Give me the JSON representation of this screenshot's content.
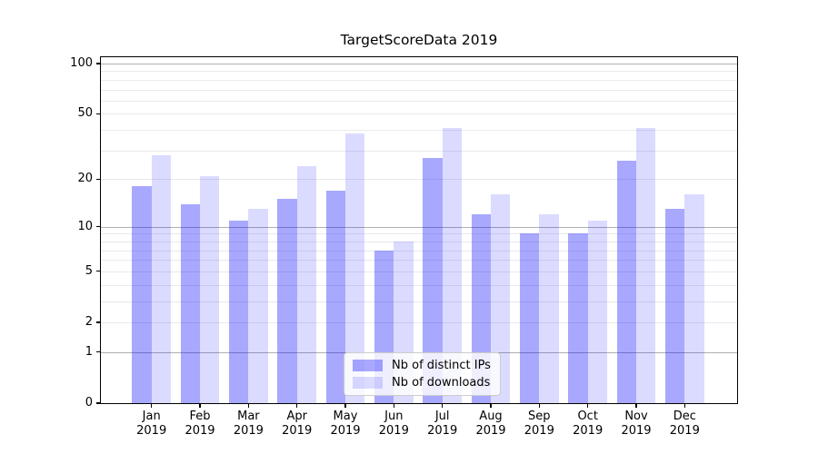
{
  "title": "TargetScoreData 2019",
  "legend": {
    "items": [
      {
        "label": "Nb of distinct IPs",
        "series_key": "ips"
      },
      {
        "label": "Nb of downloads",
        "series_key": "downloads"
      }
    ],
    "position": "lower center"
  },
  "axes": {
    "y_tick_labels": [
      "100",
      "50",
      "20",
      "10",
      "5",
      "2",
      "1",
      "0"
    ],
    "y_tick_values": [
      100,
      50,
      20,
      10,
      5,
      2,
      1,
      0
    ],
    "x_tick_months": [
      "Jan",
      "Feb",
      "Mar",
      "Apr",
      "May",
      "Jun",
      "Jul",
      "Aug",
      "Sep",
      "Oct",
      "Nov",
      "Dec"
    ],
    "x_tick_year": "2019"
  },
  "colors": {
    "bar_ips": "rgba(0,0,255,0.34)",
    "bar_downloads": "rgba(0,0,255,0.14)",
    "grid_major": "#b0b0b0",
    "grid_minor": "#e9e9ef",
    "spine": "#000000",
    "text": "#000000",
    "legend_border": "#cccccc",
    "legend_bg": "rgba(255,255,255,0.8)"
  },
  "chart_data": {
    "type": "bar",
    "title": "TargetScoreData 2019",
    "categories": [
      "Jan 2019",
      "Feb 2019",
      "Mar 2019",
      "Apr 2019",
      "May 2019",
      "Jun 2019",
      "Jul 2019",
      "Aug 2019",
      "Sep 2019",
      "Oct 2019",
      "Nov 2019",
      "Dec 2019"
    ],
    "series": [
      {
        "name": "Nb of distinct IPs",
        "values": [
          18,
          14,
          11,
          15,
          17,
          7,
          27,
          12,
          9,
          9,
          26,
          13
        ]
      },
      {
        "name": "Nb of downloads",
        "values": [
          28,
          21,
          13,
          24,
          38,
          8,
          41,
          16,
          12,
          11,
          41,
          16
        ]
      }
    ],
    "yscale": "log10(1+y)",
    "ylim": [
      0,
      110
    ],
    "yticks": [
      0,
      1,
      2,
      5,
      10,
      20,
      50,
      100
    ],
    "grid_major_values": [
      1,
      10,
      100
    ],
    "grid_minor_values": [
      2,
      3,
      4,
      5,
      6,
      7,
      8,
      9,
      20,
      30,
      40,
      50,
      60,
      70,
      80,
      90
    ],
    "grid": "horizontal",
    "legend_position": "lower center"
  }
}
